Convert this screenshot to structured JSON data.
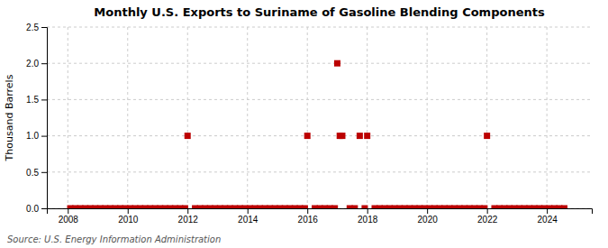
{
  "chart_data": {
    "type": "scatter",
    "title": "Monthly U.S. Exports to Suriname of Gasoline Blending Components",
    "ylabel": "Thousand Barrels",
    "annotations": [
      "Source: U.S. Energy Information Administration"
    ],
    "xlim": [
      2007.3,
      2025.5
    ],
    "ylim": [
      0,
      2.5
    ],
    "xticks": [
      2008,
      2010,
      2012,
      2014,
      2016,
      2018,
      2020,
      2022,
      2024
    ],
    "yticks": [
      {
        "value": 0.0,
        "label": "0.0"
      },
      0.5,
      {
        "value": 1.0,
        "label": "1.0"
      },
      1.5,
      {
        "value": 2.0,
        "label": "2.0"
      },
      2.5
    ],
    "grid": true,
    "color": "#bb0000",
    "marker": "square",
    "x": [
      2008.0833,
      2008.25,
      2008.4167,
      2008.5833,
      2008.75,
      2008.9167,
      2009.0833,
      2009.25,
      2009.4167,
      2009.5833,
      2009.75,
      2009.9167,
      2010.0833,
      2010.25,
      2010.4167,
      2010.5833,
      2010.75,
      2010.9167,
      2011.0833,
      2011.25,
      2011.4167,
      2011.5833,
      2011.75,
      2011.9167,
      2012.0,
      2012.25,
      2012.4167,
      2012.5833,
      2012.75,
      2012.9167,
      2013.0833,
      2013.25,
      2013.4167,
      2013.5833,
      2013.75,
      2013.9167,
      2014.0833,
      2014.25,
      2014.4167,
      2014.5833,
      2014.75,
      2014.9167,
      2015.0833,
      2015.25,
      2015.4167,
      2015.5833,
      2015.75,
      2015.9167,
      2016.0,
      2016.25,
      2016.4167,
      2016.5833,
      2016.75,
      2016.9167,
      2017.0,
      2017.0833,
      2017.1667,
      2017.4167,
      2017.5833,
      2017.75,
      2017.9167,
      2018.0,
      2018.25,
      2018.4167,
      2018.5833,
      2018.75,
      2018.9167,
      2019.0833,
      2019.25,
      2019.4167,
      2019.5833,
      2019.75,
      2019.9167,
      2020.0833,
      2020.25,
      2020.4167,
      2020.5833,
      2020.75,
      2020.9167,
      2021.0833,
      2021.25,
      2021.4167,
      2021.5833,
      2021.75,
      2021.9167,
      2022.0,
      2022.25,
      2022.4167,
      2022.5833,
      2022.75,
      2022.9167,
      2023.0833,
      2023.25,
      2023.4167,
      2023.5833,
      2023.75,
      2023.9167,
      2024.0833,
      2024.25,
      2024.4167,
      2024.5833
    ],
    "values": [
      0,
      0,
      0,
      0,
      0,
      0,
      0,
      0,
      0,
      0,
      0,
      0,
      0,
      0,
      0,
      0,
      0,
      0,
      0,
      0,
      0,
      0,
      0,
      0,
      1.0,
      0,
      0,
      0,
      0,
      0,
      0,
      0,
      0,
      0,
      0,
      0,
      0,
      0,
      0,
      0,
      0,
      0,
      0,
      0,
      0,
      0,
      0,
      0,
      1.0,
      0,
      0,
      0,
      0,
      0,
      2.0,
      1.0,
      1.0,
      0,
      0,
      1.0,
      0,
      1.0,
      0,
      0,
      0,
      0,
      0,
      0,
      0,
      0,
      0,
      0,
      0,
      0,
      0,
      0,
      0,
      0,
      0,
      0,
      0,
      0,
      0,
      0,
      0,
      1.0,
      0,
      0,
      0,
      0,
      0,
      0,
      0,
      0,
      0,
      0,
      0,
      0,
      0,
      0,
      0
    ]
  }
}
